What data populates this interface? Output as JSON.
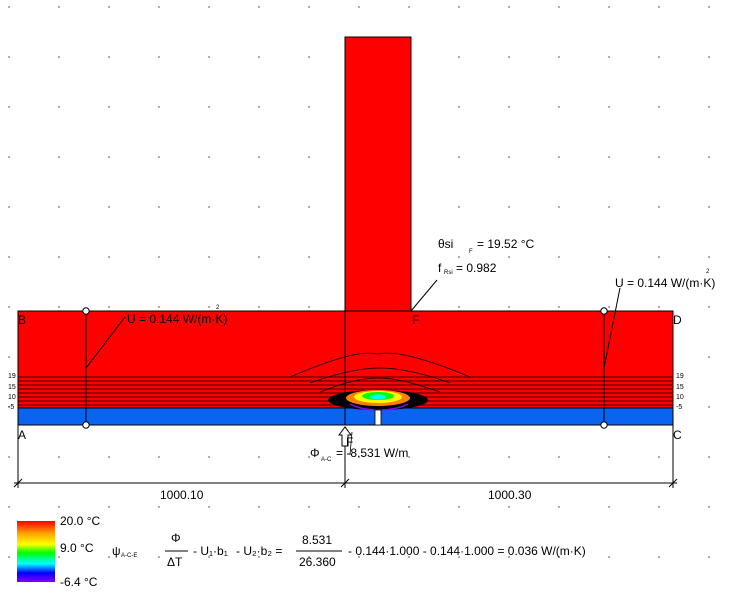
{
  "colors": {
    "warm": "#ff0000",
    "cold": "#0a64f0",
    "accent_dark": "#000000"
  },
  "corners": {
    "A": "A",
    "B": "B",
    "C": "C",
    "D": "D",
    "E": "E",
    "F": "F"
  },
  "annotations": {
    "u_left": "U = 0.144 W/(m·K)",
    "u_left_exp": "2",
    "u_right": "U = 0.144 W/(m·K)",
    "u_right_exp": "2",
    "theta_label": "θsi",
    "theta_sub": "F",
    "theta_value": "= 19.52 °C",
    "frsi_label": "f",
    "frsi_sub": "Rsi",
    "frsi_value": "= 0.982",
    "phi_label": "Φ",
    "phi_sub": "A-C",
    "phi_value": "= -8.531 W/m",
    "f_marker": "F"
  },
  "isotherm_labels": {
    "left": [
      "19",
      "15",
      "10",
      "-5"
    ],
    "right": [
      "19",
      "15",
      "10",
      "-5"
    ]
  },
  "dimensions": {
    "left": "1000.10",
    "right": "1000.30"
  },
  "legend": {
    "max": "20.0 °C",
    "mid": "9.0 °C",
    "min": "-6.4 °C"
  },
  "formula": {
    "psi": "ψ",
    "psi_sub": "A-C-E",
    "phi": "Φ",
    "delta_t": "ΔT",
    "u1b1": "- U₁·b₁",
    "u2b2": "- U₂·b₂  =",
    "num": "8.531",
    "den": "26.360",
    "tail": "-  0.144·1.000  -  0.144·1.000  =   0.036 W/(m·K)"
  }
}
